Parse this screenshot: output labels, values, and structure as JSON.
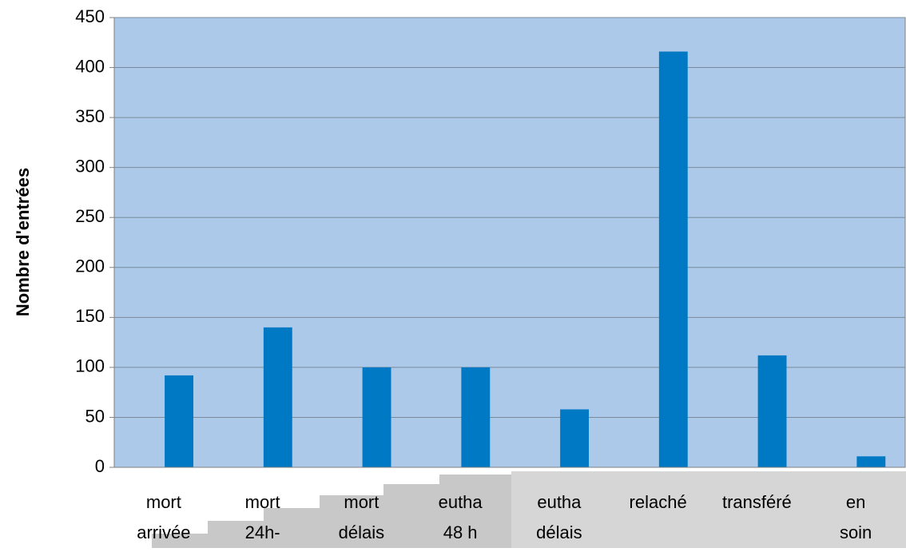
{
  "chart_data": {
    "type": "bar",
    "y_label": "Nombre d'entrées",
    "categories": [
      "mort\narrivée",
      "mort\n24h-",
      "mort\ndélais",
      "eutha\n48 h",
      "eutha\ndélais",
      "relaché",
      "transféré",
      "en\nsoin"
    ],
    "values": [
      92,
      140,
      100,
      100,
      58,
      416,
      112,
      11
    ],
    "color": "#0079c5",
    "ylim": [
      0,
      450
    ],
    "yticks": [
      0,
      50,
      100,
      150,
      200,
      250,
      300,
      350,
      400,
      450
    ],
    "grid": true
  }
}
